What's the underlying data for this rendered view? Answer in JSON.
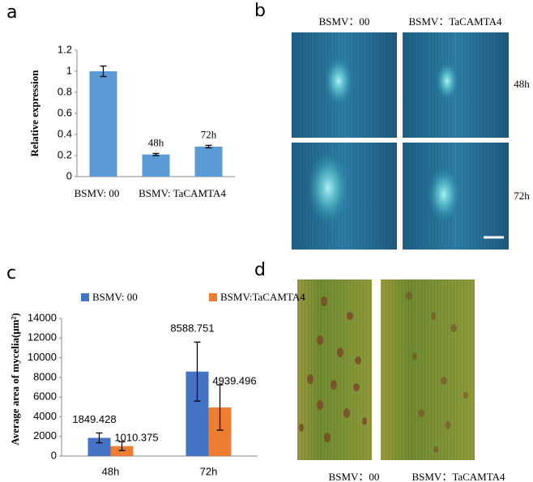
{
  "panel_labels": [
    "a",
    "b",
    "c",
    "d"
  ],
  "chart_data": [
    {
      "type": "bar",
      "y_label": "Relative expression",
      "categories": [
        null,
        "48h",
        "72h"
      ],
      "group_labels": [
        "BSMV: 00",
        "BSMV: TaCAMTA4"
      ],
      "values": [
        1.0,
        0.21,
        0.285
      ],
      "errors": [
        0.05,
        0.01,
        0.012
      ],
      "color": "#5b9bd5",
      "ylim": [
        0,
        1.2
      ],
      "yticks": [
        0,
        0.2,
        0.4,
        0.6,
        0.8,
        1,
        1.2
      ]
    },
    {
      "type": "grouped-bar",
      "y_label": "Average area of mycelia(μm²)",
      "categories": [
        "48h",
        "72h"
      ],
      "series": [
        {
          "name": "BSMV: 00",
          "color": "#4472c4",
          "values": [
            1849.428,
            8588.751
          ],
          "errors": [
            500,
            3000
          ]
        },
        {
          "name": "BSMV:TaCAMTA4",
          "color": "#ed7d31",
          "values": [
            1010.375,
            4939.496
          ],
          "errors": [
            450,
            2300
          ]
        }
      ],
      "ylim": [
        0,
        14000
      ],
      "yticks": [
        0,
        2000,
        4000,
        6000,
        8000,
        10000,
        12000,
        14000
      ]
    }
  ],
  "microscopy": {
    "column_labels": [
      "BSMV：00",
      "BSMV：TaCAMTA4"
    ],
    "row_labels": [
      "48h",
      "72h"
    ]
  },
  "leaves": {
    "labels": [
      "BSMV：00",
      "BSMV：TaCAMTA4"
    ]
  }
}
